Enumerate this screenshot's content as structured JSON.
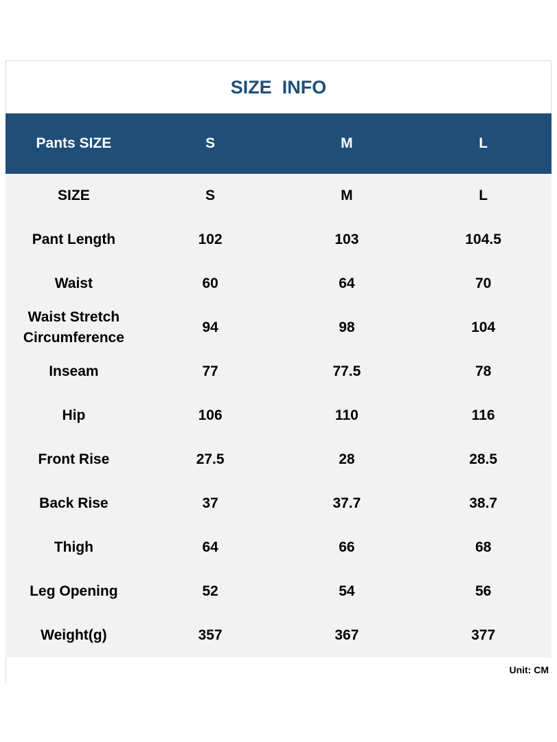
{
  "title": "SIZE  INFO",
  "table": {
    "header": [
      "Pants SIZE",
      "S",
      "M",
      "L"
    ],
    "rows": [
      [
        "SIZE",
        "S",
        "M",
        "L"
      ],
      [
        "Pant Length",
        102,
        103,
        104.5
      ],
      [
        "Waist",
        60,
        64,
        70
      ],
      [
        "Waist Stretch Circumference",
        94,
        98,
        104
      ],
      [
        "Inseam",
        77,
        77.5,
        78
      ],
      [
        "Hip",
        106,
        110,
        116
      ],
      [
        "Front Rise",
        27.5,
        28,
        28.5
      ],
      [
        "Back Rise",
        37,
        37.7,
        38.7
      ],
      [
        "Thigh",
        64,
        66,
        68
      ],
      [
        "Leg Opening",
        52,
        54,
        56
      ],
      [
        "Weight(g)",
        357,
        367,
        377
      ]
    ]
  },
  "unit": "Unit: CM"
}
